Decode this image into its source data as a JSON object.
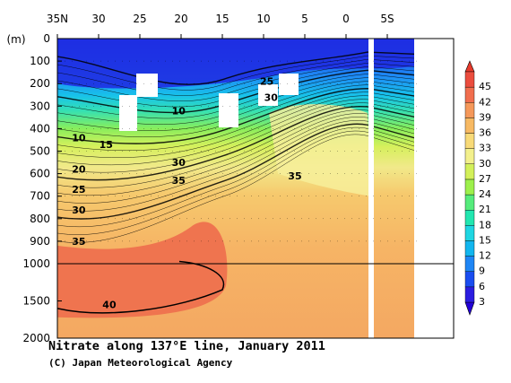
{
  "chart_data": {
    "type": "heatmap",
    "title": "Nitrate along 137°E line, January 2011",
    "credit": "(C) Japan Meteorological Agency",
    "x_axis": {
      "ticks": [
        {
          "value": 35,
          "label": "35N"
        },
        {
          "value": 30,
          "label": "30"
        },
        {
          "value": 25,
          "label": "25"
        },
        {
          "value": 20,
          "label": "20"
        },
        {
          "value": 15,
          "label": "15"
        },
        {
          "value": 10,
          "label": "10"
        },
        {
          "value": 5,
          "label": "5"
        },
        {
          "value": 0,
          "label": "0"
        },
        {
          "value": -5,
          "label": "5S"
        }
      ],
      "range": [
        35,
        -5
      ]
    },
    "y_axis": {
      "unit_label": "(m)",
      "upper_ticks": [
        0,
        100,
        200,
        300,
        400,
        500,
        600,
        700,
        800,
        900,
        1000
      ],
      "lower_ticks": [
        1500,
        2000
      ],
      "break_depth": 1000,
      "range": [
        0,
        2000
      ]
    },
    "colorbar": {
      "levels": [
        3,
        6,
        9,
        12,
        15,
        18,
        21,
        24,
        27,
        30,
        33,
        36,
        39,
        42,
        45
      ],
      "colors": [
        "#2b1de0",
        "#1a4df0",
        "#1f86f5",
        "#12b6ef",
        "#1fd6e2",
        "#22e6b0",
        "#56ec7c",
        "#9df04c",
        "#d3f05a",
        "#f3f08c",
        "#f8da78",
        "#f7b963",
        "#f5985a",
        "#f16e4e",
        "#eb4d3e"
      ],
      "min_arrow_color": "#2300d8",
      "max_arrow_color": "#e83a2c"
    },
    "contour_labels": [
      {
        "lat": 32.4,
        "depth": 440,
        "text": "10"
      },
      {
        "lat": 29.1,
        "depth": 470,
        "text": "15"
      },
      {
        "lat": 32.4,
        "depth": 580,
        "text": "20"
      },
      {
        "lat": 32.4,
        "depth": 670,
        "text": "25"
      },
      {
        "lat": 32.4,
        "depth": 760,
        "text": "30"
      },
      {
        "lat": 32.4,
        "depth": 900,
        "text": "35"
      },
      {
        "lat": 28.7,
        "depth": 1550,
        "text": "40"
      },
      {
        "lat": 20.3,
        "depth": 320,
        "text": "10"
      },
      {
        "lat": 20.3,
        "depth": 550,
        "text": "30"
      },
      {
        "lat": 20.3,
        "depth": 630,
        "text": "35"
      },
      {
        "lat": 9.6,
        "depth": 190,
        "text": "25"
      },
      {
        "lat": 9.1,
        "depth": 260,
        "text": "30"
      },
      {
        "lat": 6.2,
        "depth": 610,
        "text": "35"
      }
    ]
  }
}
